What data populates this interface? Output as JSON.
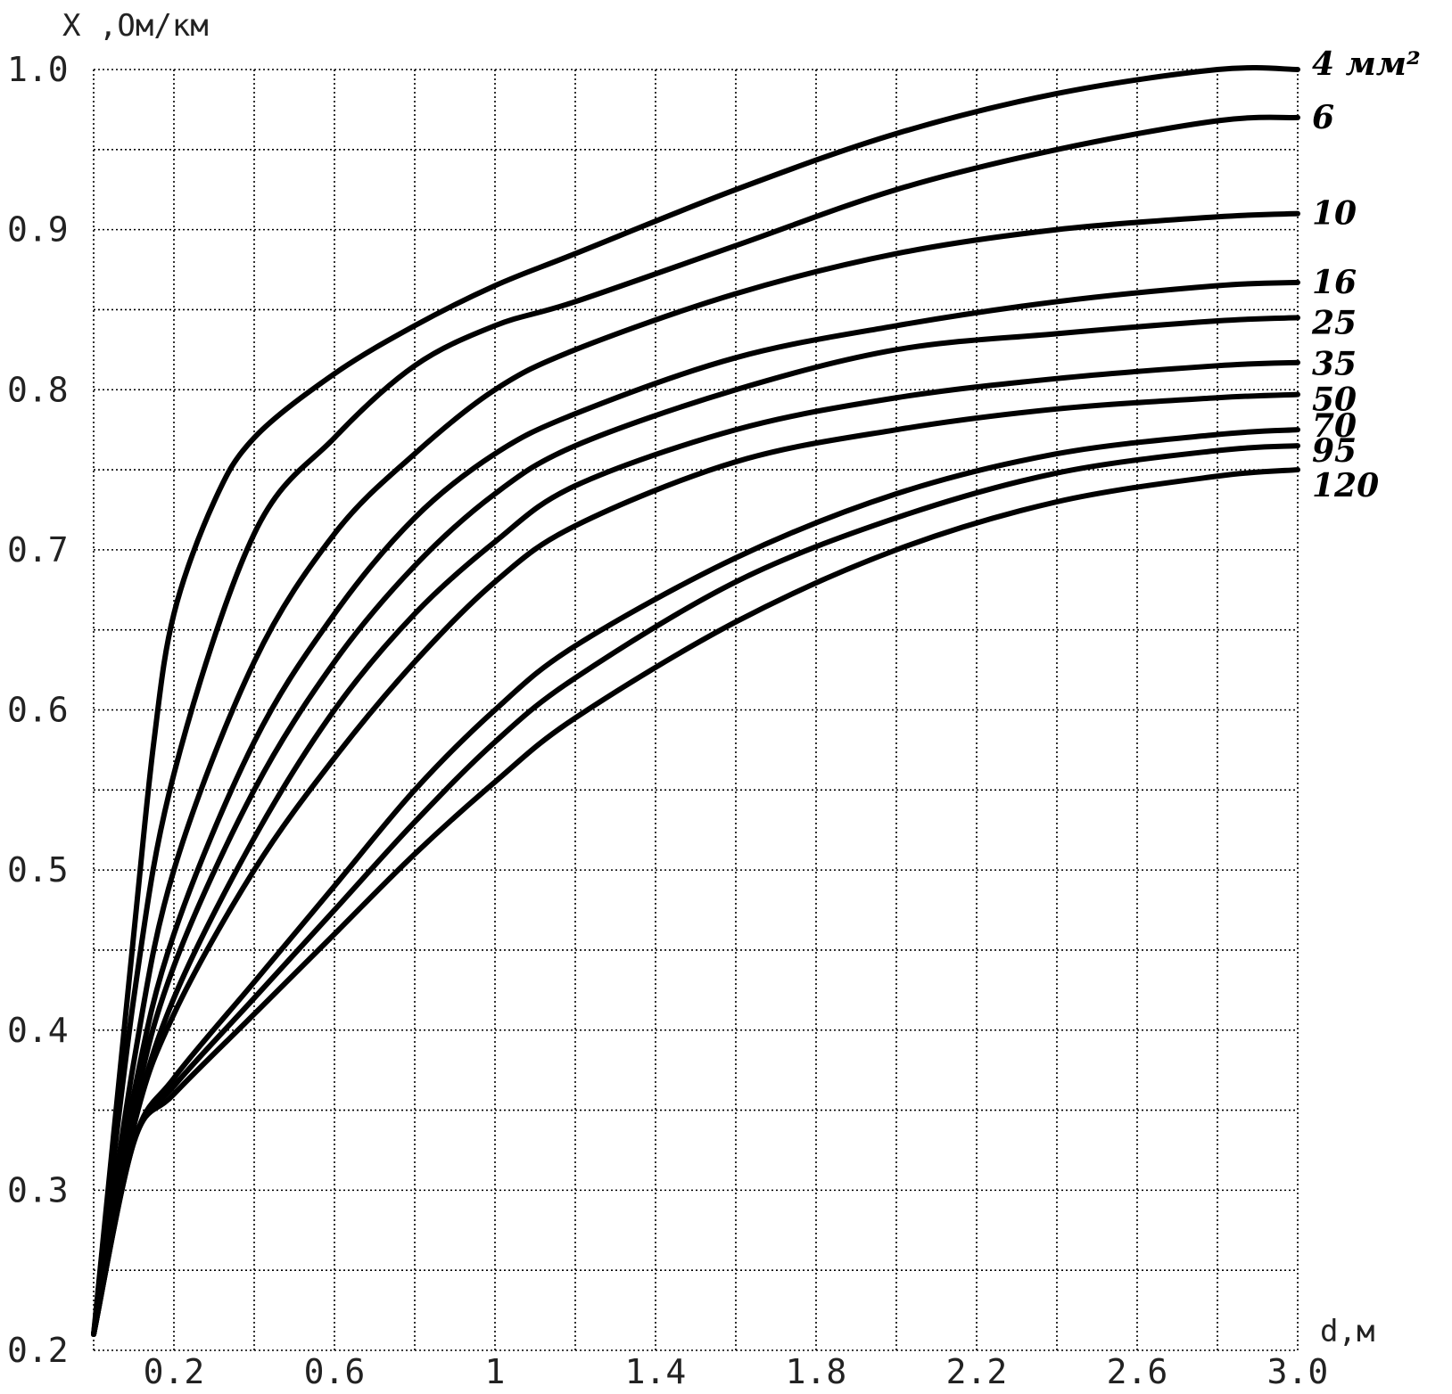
{
  "chart_data": {
    "type": "line",
    "title": "",
    "ylabel": "X ,Ом/км",
    "xlabel": "d,м",
    "xlim": [
      0,
      3.0
    ],
    "ylim": [
      0.2,
      1.0
    ],
    "grid": true,
    "x_ticks": [
      {
        "value": 0.2,
        "label": "0.2"
      },
      {
        "value": 0.6,
        "label": "0.6"
      },
      {
        "value": 1.0,
        "label": "1"
      },
      {
        "value": 1.4,
        "label": "1.4"
      },
      {
        "value": 1.8,
        "label": "1.8"
      },
      {
        "value": 2.2,
        "label": "2.2"
      },
      {
        "value": 2.6,
        "label": "2.6"
      },
      {
        "value": 3.0,
        "label": "3.0"
      }
    ],
    "y_ticks": [
      {
        "value": 1.0,
        "label": "1.0"
      },
      {
        "value": 0.9,
        "label": "0.9"
      },
      {
        "value": 0.8,
        "label": "0.8"
      },
      {
        "value": 0.7,
        "label": "0.7"
      },
      {
        "value": 0.6,
        "label": "0.6"
      },
      {
        "value": 0.5,
        "label": "0.5"
      },
      {
        "value": 0.4,
        "label": "0.4"
      },
      {
        "value": 0.3,
        "label": "0.3"
      },
      {
        "value": 0.2,
        "label": "0.2"
      }
    ],
    "series": [
      {
        "name": "4 мм²",
        "x": [
          0.0,
          0.1,
          0.15,
          0.2,
          0.3,
          0.4,
          0.6,
          0.8,
          1.0,
          1.2,
          1.6,
          2.0,
          2.4,
          2.8,
          3.0
        ],
        "y": [
          0.21,
          0.46,
          0.58,
          0.66,
          0.73,
          0.77,
          0.81,
          0.84,
          0.865,
          0.885,
          0.925,
          0.96,
          0.985,
          1.0,
          1.0
        ]
      },
      {
        "name": "6",
        "x": [
          0.0,
          0.1,
          0.2,
          0.4,
          0.6,
          0.8,
          1.0,
          1.2,
          1.6,
          2.0,
          2.4,
          2.8,
          3.0
        ],
        "y": [
          0.21,
          0.42,
          0.56,
          0.71,
          0.77,
          0.815,
          0.84,
          0.855,
          0.89,
          0.925,
          0.95,
          0.968,
          0.97
        ]
      },
      {
        "name": "10",
        "x": [
          0.0,
          0.1,
          0.2,
          0.4,
          0.6,
          0.8,
          1.0,
          1.2,
          1.6,
          2.0,
          2.4,
          2.8,
          3.0
        ],
        "y": [
          0.21,
          0.38,
          0.5,
          0.63,
          0.71,
          0.76,
          0.8,
          0.825,
          0.86,
          0.885,
          0.9,
          0.908,
          0.91
        ]
      },
      {
        "name": "16",
        "x": [
          0.0,
          0.1,
          0.2,
          0.4,
          0.6,
          0.8,
          1.0,
          1.2,
          1.6,
          2.0,
          2.4,
          2.8,
          3.0
        ],
        "y": [
          0.21,
          0.36,
          0.46,
          0.58,
          0.66,
          0.72,
          0.76,
          0.785,
          0.82,
          0.84,
          0.855,
          0.865,
          0.867
        ]
      },
      {
        "name": "25",
        "x": [
          0.0,
          0.1,
          0.2,
          0.4,
          0.6,
          0.8,
          1.0,
          1.2,
          1.6,
          2.0,
          2.4,
          2.8,
          3.0
        ],
        "y": [
          0.21,
          0.35,
          0.44,
          0.55,
          0.63,
          0.69,
          0.735,
          0.765,
          0.8,
          0.825,
          0.835,
          0.843,
          0.845
        ]
      },
      {
        "name": "35",
        "x": [
          0.0,
          0.1,
          0.2,
          0.4,
          0.6,
          0.8,
          1.0,
          1.2,
          1.6,
          2.0,
          2.4,
          2.8,
          3.0
        ],
        "y": [
          0.21,
          0.34,
          0.42,
          0.52,
          0.6,
          0.66,
          0.705,
          0.74,
          0.775,
          0.795,
          0.807,
          0.815,
          0.817
        ]
      },
      {
        "name": "50",
        "x": [
          0.0,
          0.1,
          0.2,
          0.4,
          0.6,
          0.8,
          1.0,
          1.2,
          1.6,
          2.0,
          2.4,
          2.8,
          3.0
        ],
        "y": [
          0.21,
          0.34,
          0.41,
          0.5,
          0.57,
          0.63,
          0.68,
          0.715,
          0.755,
          0.775,
          0.788,
          0.795,
          0.797
        ]
      },
      {
        "name": "70",
        "x": [
          0.0,
          0.1,
          0.2,
          0.4,
          0.6,
          0.8,
          1.0,
          1.2,
          1.6,
          2.0,
          2.4,
          2.8,
          3.0
        ],
        "y": [
          0.21,
          0.33,
          0.37,
          0.43,
          0.49,
          0.55,
          0.6,
          0.64,
          0.695,
          0.735,
          0.76,
          0.772,
          0.775
        ]
      },
      {
        "name": "95",
        "x": [
          0.0,
          0.1,
          0.2,
          0.4,
          0.6,
          0.8,
          1.0,
          1.2,
          1.6,
          2.0,
          2.4,
          2.8,
          3.0
        ],
        "y": [
          0.21,
          0.33,
          0.365,
          0.42,
          0.475,
          0.53,
          0.58,
          0.62,
          0.68,
          0.72,
          0.748,
          0.762,
          0.765
        ]
      },
      {
        "name": "120",
        "x": [
          0.0,
          0.1,
          0.2,
          0.4,
          0.6,
          0.8,
          1.0,
          1.2,
          1.6,
          2.0,
          2.4,
          2.8,
          3.0
        ],
        "y": [
          0.21,
          0.33,
          0.36,
          0.41,
          0.46,
          0.51,
          0.555,
          0.595,
          0.655,
          0.7,
          0.73,
          0.746,
          0.75
        ]
      }
    ]
  }
}
